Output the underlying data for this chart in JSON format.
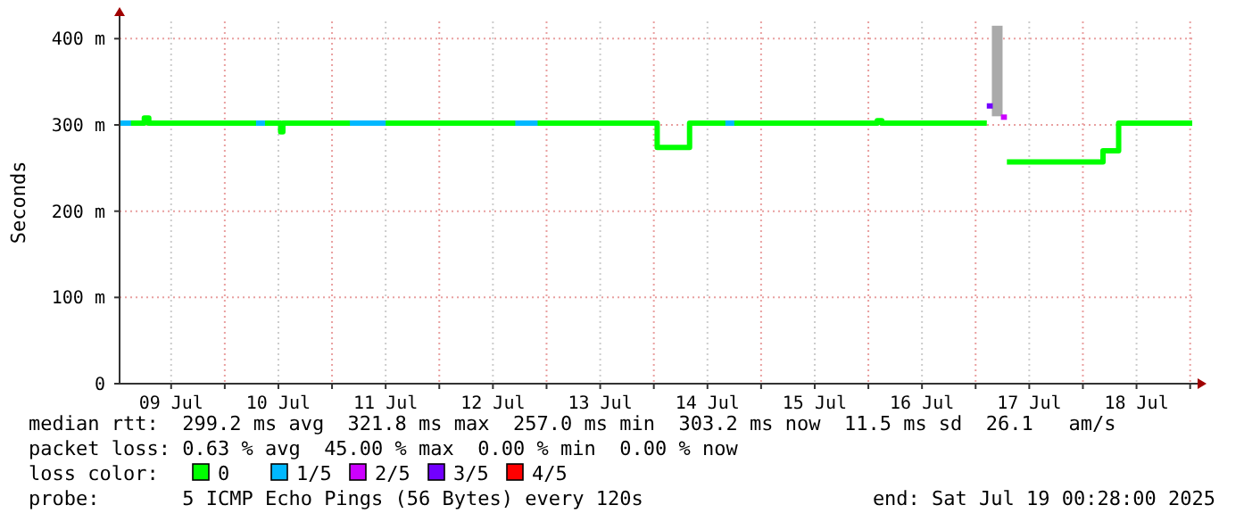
{
  "chart_data": {
    "type": "step",
    "ylabel": "Seconds",
    "legend_title": "loss color:",
    "legend": "bottom",
    "grid": true,
    "xlim": [
      "2025-07-09T00:28",
      "2025-07-19T00:28"
    ],
    "xticks": [
      {
        "value": "2025-07-09T12:00",
        "label": "09 Jul"
      },
      {
        "value": "2025-07-10T00:00",
        "label": null
      },
      {
        "value": "2025-07-10T12:00",
        "label": "10 Jul"
      },
      {
        "value": "2025-07-11T00:00",
        "label": null
      },
      {
        "value": "2025-07-11T12:00",
        "label": "11 Jul"
      },
      {
        "value": "2025-07-12T00:00",
        "label": null
      },
      {
        "value": "2025-07-12T12:00",
        "label": "12 Jul"
      },
      {
        "value": "2025-07-13T00:00",
        "label": null
      },
      {
        "value": "2025-07-13T12:00",
        "label": "13 Jul"
      },
      {
        "value": "2025-07-14T00:00",
        "label": null
      },
      {
        "value": "2025-07-14T12:00",
        "label": "14 Jul"
      },
      {
        "value": "2025-07-15T00:00",
        "label": null
      },
      {
        "value": "2025-07-15T12:00",
        "label": "15 Jul"
      },
      {
        "value": "2025-07-16T00:00",
        "label": null
      },
      {
        "value": "2025-07-16T12:00",
        "label": "16 Jul"
      },
      {
        "value": "2025-07-17T00:00",
        "label": null
      },
      {
        "value": "2025-07-17T12:00",
        "label": "17 Jul"
      },
      {
        "value": "2025-07-18T00:00",
        "label": null
      },
      {
        "value": "2025-07-18T12:00",
        "label": "18 Jul"
      },
      {
        "value": "2025-07-19T00:00",
        "label": null
      }
    ],
    "ylim": [
      0,
      420
    ],
    "yticks": [
      0,
      {
        "value": 100,
        "label": "100 m"
      },
      {
        "value": 200,
        "label": "200 m"
      },
      {
        "value": 300,
        "label": "300 m"
      },
      {
        "value": 400,
        "label": "400 m"
      }
    ],
    "series": [
      {
        "type": "bar",
        "color": "#aaaaaa",
        "x": [
          "2025-07-17T04:50"
        ],
        "base": [
          310
        ],
        "values": [
          105
        ]
      },
      {
        "name": "0",
        "color": "#00ff00",
        "x": [
          "2025-07-09T00:28",
          "2025-07-09T05:00",
          "2025-07-09T06:00",
          "2025-07-09T07:00",
          "2025-07-10T12:00",
          "2025-07-10T12:30",
          "2025-07-10T13:00",
          "2025-07-14T00:15",
          "2025-07-14T00:45",
          "2025-07-14T07:30",
          "2025-07-14T08:00",
          "2025-07-16T02:00",
          "2025-07-16T03:00",
          "2025-07-17T02:30",
          "2025-07-17T04:40",
          "2025-07-17T05:10",
          "2025-07-17T07:00",
          "2025-07-18T04:00",
          "2025-07-18T04:30",
          "2025-07-18T07:00",
          "2025-07-18T08:00",
          "2025-07-19T00:28"
        ],
        "values": [
          302,
          302,
          308,
          302,
          302,
          292,
          302,
          302,
          274,
          274,
          302,
          305,
          302,
          302,
          null,
          null,
          257,
          257,
          270,
          270,
          302,
          302
        ]
      },
      {
        "name": "1/5",
        "color": "#00b8ff",
        "x": [
          "2025-07-09T00:28",
          "2025-07-09T03:00",
          "2025-07-09T04:00",
          "2025-07-10T07:00",
          "2025-07-10T09:00",
          "2025-07-10T10:00",
          "2025-07-11T04:00",
          "2025-07-11T12:00",
          "2025-07-11T13:00",
          "2025-07-12T17:00",
          "2025-07-12T22:00",
          "2025-07-12T23:00",
          "2025-07-14T16:00",
          "2025-07-14T18:00"
        ],
        "values": [
          302,
          302,
          null,
          302,
          302,
          null,
          302,
          302,
          null,
          302,
          302,
          null,
          302,
          302
        ]
      },
      {
        "name": "2/5",
        "color": "#cc00ff",
        "x": [
          "2025-07-17T05:40",
          "2025-07-17T07:00"
        ],
        "values": [
          309,
          309
        ]
      },
      {
        "name": "3/5",
        "color": "#7200ff",
        "x": [
          "2025-07-17T02:30",
          "2025-07-17T03:50"
        ],
        "values": [
          322,
          322
        ]
      },
      {
        "name": "4/5",
        "color": "#ff0000"
      }
    ],
    "annotations": [
      "median rtt:  299.2 ms avg  321.8 ms max  257.0 ms min  303.2 ms now  11.5 ms sd  26.1   am/s",
      "packet loss: 0.63 % avg  45.00 % max  0.00 % min  0.00 % now",
      "probe:       5 ICMP Echo Pings (56 Bytes) every 120s",
      "end: Sat Jul 19 00:28:00 2025"
    ]
  }
}
